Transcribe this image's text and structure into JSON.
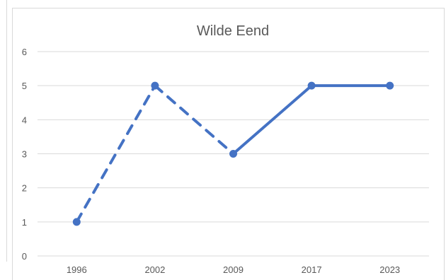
{
  "chart_data": {
    "type": "line",
    "title": "Wilde Eend",
    "xlabel": "",
    "ylabel": "",
    "categories": [
      "1996",
      "2002",
      "2009",
      "2017",
      "2023"
    ],
    "series": [
      {
        "values": [
          1,
          5,
          3,
          5,
          5
        ],
        "color": "#4472c4",
        "line_style": [
          "dashed",
          "dashed",
          "solid",
          "solid"
        ]
      }
    ],
    "ylim": [
      0,
      6
    ],
    "yticks": [
      "0",
      "1",
      "2",
      "3",
      "4",
      "5",
      "6"
    ],
    "grid": "horizontal",
    "legend": "none",
    "gridline_color": "#d9d9d9",
    "text_color": "#595959"
  }
}
